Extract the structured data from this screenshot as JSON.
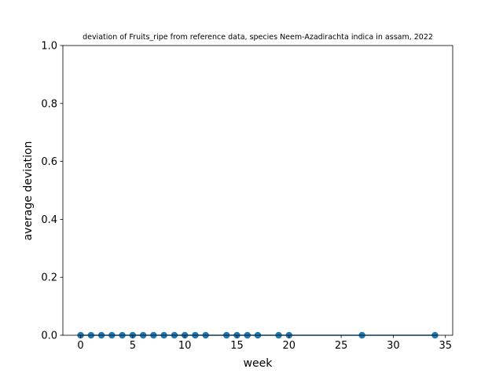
{
  "chart_data": {
    "type": "line",
    "title": "deviation of Fruits_ripe from reference data, species Neem-Azadirachta indica in assam, 2022",
    "xlabel": "week",
    "ylabel": "average deviation",
    "xlim": [
      -1.7,
      35.7
    ],
    "ylim": [
      0.0,
      1.0
    ],
    "x_ticks": [
      0,
      5,
      10,
      15,
      20,
      25,
      30,
      35
    ],
    "x_tick_labels": [
      "0",
      "5",
      "10",
      "15",
      "20",
      "25",
      "30",
      "35"
    ],
    "y_ticks": [
      0.0,
      0.2,
      0.4,
      0.6,
      0.8,
      1.0
    ],
    "y_tick_labels": [
      "0.0",
      "0.2",
      "0.4",
      "0.6",
      "0.8",
      "1.0"
    ],
    "grid": false,
    "series": [
      {
        "x": [
          0,
          1,
          2,
          3,
          4,
          5,
          6,
          7,
          8,
          9,
          10,
          11,
          12,
          14,
          15,
          16,
          17,
          19,
          20,
          27,
          34
        ],
        "y": [
          0,
          0,
          0,
          0,
          0,
          0,
          0,
          0,
          0,
          0,
          0,
          0,
          0,
          0,
          0,
          0,
          0,
          0,
          0,
          0,
          0
        ],
        "color": "#1f77b4",
        "marker": "circle"
      }
    ]
  }
}
